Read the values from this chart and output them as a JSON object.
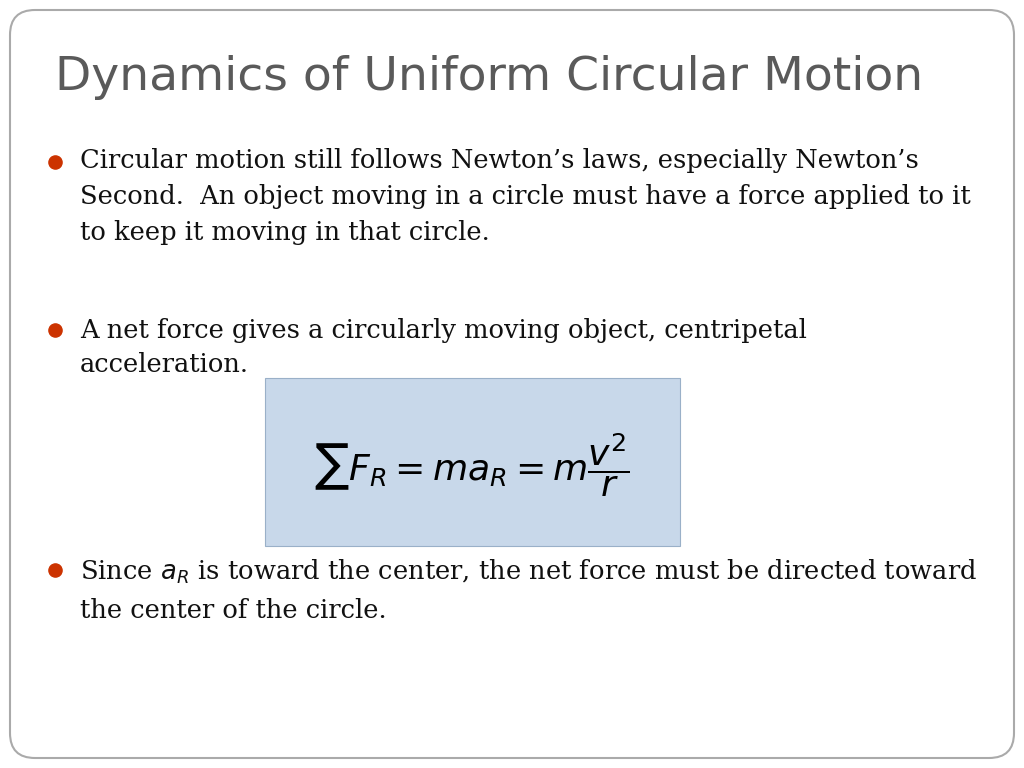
{
  "title": "Dynamics of Uniform Circular Motion",
  "title_color": "#5a5a5a",
  "title_fontsize": 34,
  "background_color": "#ffffff",
  "bullet_color": "#cc3300",
  "bullet_text_color": "#111111",
  "bullet_fontsize": 18.5,
  "bullet1": "Circular motion still follows Newton’s laws, especially Newton’s\nSecond.  An object moving in a circle must have a force applied to it\nto keep it moving in that circle.",
  "bullet2_line1": "A net force gives a circularly moving object, centripetal",
  "bullet2_line2": "acceleration.",
  "bullet3": "Since $a_R$ is toward the center, the net force must be directed toward\nthe center of the circle.",
  "equation_box_color": "#c8d8ea",
  "equation_fontsize": 26,
  "border_color": "#aaaaaa"
}
